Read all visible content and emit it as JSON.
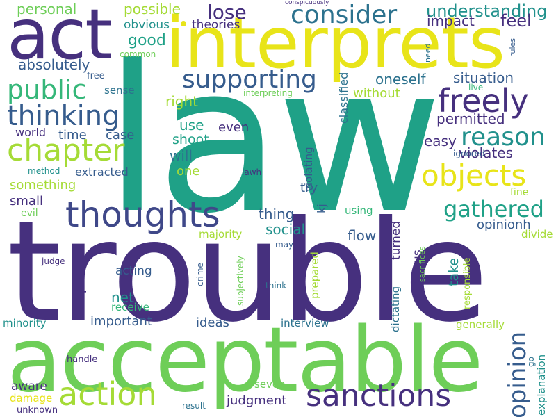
{
  "palette": {
    "background": "#ffffff",
    "dark_purple": "#46307e",
    "indigo": "#3f4889",
    "blue": "#365c8d",
    "teal_blue": "#2c728e",
    "teal": "#21918c",
    "green_teal": "#1fa187",
    "green": "#35b779",
    "light_green": "#6ece58",
    "yellow_green": "#a5db36",
    "yellow": "#e8e419",
    "gray_blue": "#414487"
  },
  "words": [
    "law",
    "trouble",
    "acceptable",
    "interprets",
    "act",
    "consider",
    "action",
    "sanctions",
    "thoughts",
    "chapter",
    "objects",
    "freely",
    "thinking",
    "public",
    "supporting",
    "reason",
    "gathered",
    "lose",
    "opinion",
    "understanding",
    "feel",
    "impact",
    "theories",
    "possible",
    "personal",
    "obvious",
    "common",
    "good",
    "absolutely",
    "free",
    "sense",
    "situation",
    "oneself",
    "interpreting",
    "without",
    "classified",
    "live",
    "right",
    "permitted",
    "world",
    "time",
    "case",
    "use",
    "even",
    "shoot",
    "easy",
    "violates",
    "will",
    "extracted",
    "method",
    "lawh",
    "violating",
    "ignored",
    "one",
    "something",
    "fine",
    "small",
    "try",
    "kj",
    "evil",
    "thing",
    "using",
    "social",
    "opinionh",
    "majority",
    "flow",
    "temptation",
    "turned",
    "previous",
    "take",
    "prepared",
    "may",
    "divide",
    "sacrifices",
    "responsible",
    "judge",
    "acting",
    "crime",
    "subjectively",
    "think",
    "net",
    "receive",
    "important",
    "ideas",
    "interview",
    "generally",
    "dictating",
    "minority",
    "explanation",
    "handle",
    "go",
    "aware",
    "seven",
    "judgment",
    "damage",
    "unknown",
    "result",
    "conspicuously",
    "rules",
    "need"
  ]
}
